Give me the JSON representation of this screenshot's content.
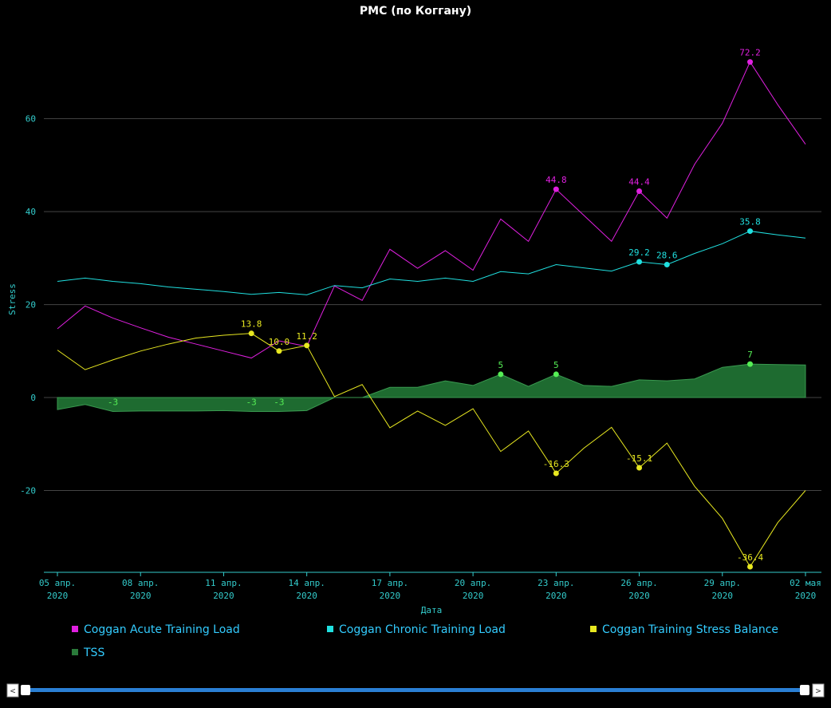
{
  "chart_data": {
    "type": "line",
    "title": "PMC (по Коггану)",
    "x_label": "Дата",
    "y_label": "Stress",
    "categories": [
      "05 апр.\n2020",
      null,
      null,
      "08 апр.\n2020",
      null,
      null,
      "11 апр.\n2020",
      null,
      null,
      "14 апр.\n2020",
      null,
      null,
      "17 апр.\n2020",
      null,
      null,
      "20 апр.\n2020",
      null,
      null,
      "23 апр.\n2020",
      null,
      null,
      "26 апр.\n2020",
      null,
      null,
      "29 апр.\n2020",
      null,
      null,
      "02 мая\n2020"
    ],
    "ylim": [
      -37.6,
      79
    ],
    "yticks": [
      -20,
      0,
      20,
      40,
      60
    ],
    "grid": true,
    "series": [
      {
        "name": "Coggan Acute Training Load",
        "color": "#e020e0",
        "kind": "line",
        "values": [
          14.8,
          19.7,
          17.1,
          15,
          13,
          11.5,
          10,
          8.5,
          12.2,
          11,
          24,
          20.9,
          31.9,
          27.8,
          31.6,
          27.4,
          38.4,
          33.6,
          44.8,
          39.2,
          33.6,
          44.4,
          38.6,
          50.2,
          59,
          72.2,
          63,
          54.5
        ],
        "value_labels": [
          null,
          null,
          null,
          null,
          null,
          null,
          null,
          null,
          null,
          null,
          null,
          null,
          null,
          null,
          null,
          null,
          null,
          null,
          "44.8",
          null,
          null,
          "44.4",
          null,
          null,
          null,
          "72.2",
          null,
          null
        ]
      },
      {
        "name": "Coggan Chronic Training Load",
        "color": "#20e0e0",
        "kind": "line",
        "values": [
          25,
          25.7,
          25,
          24.5,
          23.8,
          23.3,
          22.8,
          22.2,
          22.6,
          22.1,
          24.1,
          23.6,
          25.5,
          25,
          25.7,
          25,
          27.1,
          26.6,
          28.6,
          27.9,
          27.2,
          29.2,
          28.6,
          31,
          33.1,
          35.8,
          35,
          34.3
        ],
        "value_labels": [
          null,
          null,
          null,
          null,
          null,
          null,
          null,
          null,
          null,
          null,
          null,
          null,
          null,
          null,
          null,
          null,
          null,
          null,
          null,
          null,
          null,
          "29.2",
          "28.6",
          null,
          null,
          "35.8",
          null,
          null
        ]
      },
      {
        "name": "Coggan Training Stress Balance",
        "color": "#e8e820",
        "kind": "line",
        "values": [
          10.2,
          6,
          8.1,
          10,
          11.5,
          12.8,
          13.4,
          13.8,
          10,
          11.2,
          0.2,
          2.8,
          -6.5,
          -2.9,
          -6,
          -2.4,
          -11.6,
          -7.2,
          -16.3,
          -10.9,
          -6.4,
          -15.1,
          -9.8,
          -19.1,
          -26,
          -36.4,
          -26.9,
          -20
        ],
        "value_labels": [
          null,
          null,
          null,
          null,
          null,
          null,
          null,
          "13.8",
          "10.0",
          "11.2",
          null,
          null,
          null,
          null,
          null,
          null,
          null,
          null,
          "-16.3",
          null,
          null,
          "-15.1",
          null,
          null,
          null,
          "-36.4",
          null,
          null
        ]
      },
      {
        "name": "TSS",
        "color": "#1e6b30",
        "label_color": "#5e5",
        "kind": "area",
        "values": [
          -2.6,
          -1.5,
          -3,
          -2.9,
          -2.9,
          -2.9,
          -2.8,
          -3,
          -3,
          -2.8,
          0,
          0,
          2.2,
          2.2,
          3.6,
          2.6,
          5,
          2.4,
          5,
          2.6,
          2.4,
          3.8,
          3.6,
          4,
          6.5,
          7.2,
          7.1,
          7
        ],
        "value_labels": [
          null,
          null,
          "-3",
          null,
          null,
          null,
          null,
          "-3",
          "-3",
          null,
          null,
          null,
          null,
          null,
          null,
          null,
          "5",
          null,
          "5",
          null,
          null,
          null,
          null,
          null,
          null,
          "7",
          null,
          null
        ]
      }
    ]
  },
  "ui": {
    "scroll_left": "<",
    "scroll_right": ">"
  }
}
